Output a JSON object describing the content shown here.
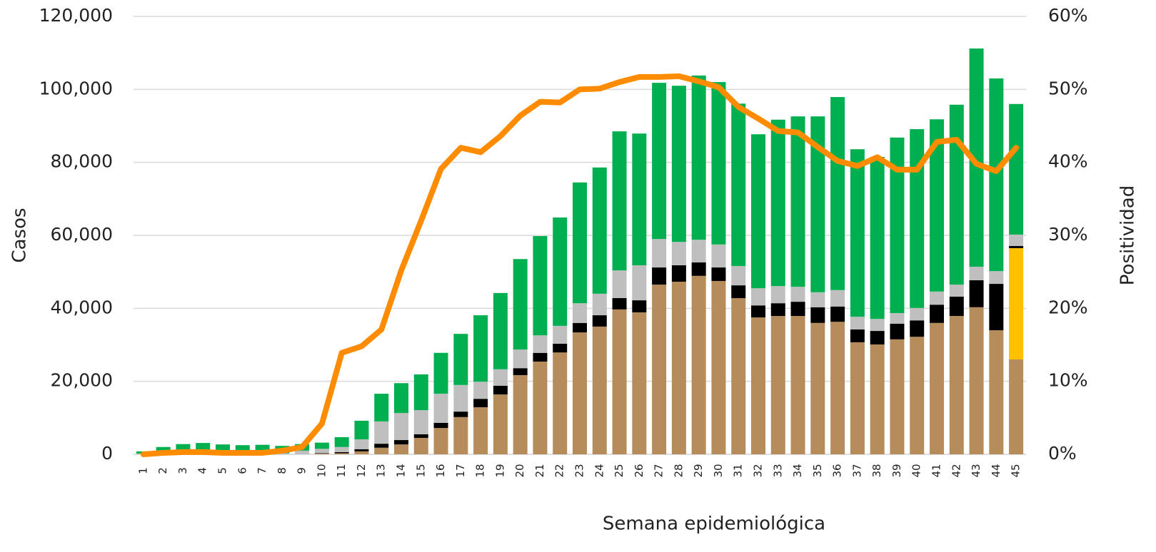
{
  "chart_data": {
    "type": "bar",
    "stacked": true,
    "grid": true,
    "xlabel": "Semana epidemiológica",
    "ylabel": "Casos",
    "y2label": "Positividad",
    "categories": [
      "1",
      "2",
      "3",
      "4",
      "5",
      "6",
      "7",
      "8",
      "9",
      "10",
      "11",
      "12",
      "13",
      "14",
      "15",
      "16",
      "17",
      "18",
      "19",
      "20",
      "21",
      "22",
      "23",
      "24",
      "25",
      "26",
      "27",
      "28",
      "29",
      "30",
      "31",
      "32",
      "33",
      "34",
      "35",
      "36",
      "37",
      "38",
      "39",
      "40",
      "41",
      "42",
      "43",
      "44",
      "45"
    ],
    "ylim": [
      0,
      120000
    ],
    "yticks": [
      0,
      {
        "value": 20000,
        "label": "20,000"
      },
      {
        "value": 40000,
        "label": "40,000"
      },
      {
        "value": 60000,
        "label": "60,000"
      },
      {
        "value": 80000,
        "label": "80,000"
      },
      {
        "value": 100000,
        "label": "100,000"
      },
      {
        "value": 120000,
        "label": "120,000"
      }
    ],
    "y2lim": [
      0,
      60
    ],
    "y2ticks": [
      {
        "value": 0,
        "label": "0%"
      },
      {
        "value": 10,
        "label": "10%"
      },
      {
        "value": 20,
        "label": "20%"
      },
      {
        "value": 30,
        "label": "30%"
      },
      {
        "value": 40,
        "label": "40%"
      },
      {
        "value": 50,
        "label": "50%"
      },
      {
        "value": 60,
        "label": "60%"
      }
    ],
    "series": [
      {
        "color": "#b58c5a",
        "values": [
          0,
          0,
          0,
          0,
          0,
          0,
          0,
          0,
          0,
          200,
          300,
          800,
          1800,
          2700,
          4500,
          7200,
          10200,
          12900,
          16400,
          21700,
          25400,
          27900,
          33400,
          35000,
          39700,
          38900,
          46500,
          47300,
          48900,
          47500,
          42800,
          37500,
          37900,
          37900,
          36000,
          36300,
          30700,
          30100,
          31500,
          32200,
          36000,
          37900,
          40300,
          34000,
          26000
        ]
      },
      {
        "color": "#ffc000",
        "values": [
          0,
          0,
          0,
          0,
          0,
          0,
          0,
          0,
          0,
          0,
          0,
          0,
          0,
          0,
          0,
          0,
          0,
          0,
          0,
          0,
          0,
          0,
          0,
          0,
          0,
          0,
          0,
          0,
          0,
          0,
          0,
          0,
          0,
          0,
          0,
          0,
          0,
          0,
          0,
          0,
          0,
          0,
          0,
          0,
          30500
        ]
      },
      {
        "color": "#000000",
        "values": [
          0,
          0,
          0,
          0,
          0,
          0,
          0,
          0,
          0,
          100,
          300,
          600,
          1100,
          1200,
          1000,
          1400,
          1500,
          2300,
          2400,
          1900,
          2400,
          2400,
          2600,
          3100,
          3100,
          3300,
          4700,
          4500,
          3700,
          3700,
          3500,
          3300,
          3500,
          3900,
          4300,
          4200,
          3500,
          3700,
          4300,
          4500,
          5000,
          5300,
          7400,
          12700,
          600
        ]
      },
      {
        "color": "#bfbfbf",
        "values": [
          200,
          300,
          300,
          300,
          300,
          300,
          300,
          300,
          1000,
          1200,
          1400,
          2700,
          6100,
          7400,
          6600,
          8000,
          7300,
          4700,
          4500,
          5100,
          4800,
          4900,
          5400,
          5900,
          7600,
          9600,
          7800,
          6400,
          6200,
          6300,
          5300,
          4700,
          4700,
          4100,
          4100,
          4500,
          3500,
          3300,
          2900,
          3400,
          3600,
          3300,
          3700,
          3500,
          3100
        ]
      },
      {
        "color": "#00b050",
        "values": [
          600,
          1700,
          2500,
          2800,
          2400,
          2200,
          2300,
          2000,
          1800,
          1700,
          2700,
          5100,
          7600,
          8200,
          9800,
          11200,
          14000,
          18200,
          20900,
          24800,
          27200,
          29700,
          33100,
          34600,
          38100,
          36100,
          42800,
          42800,
          45000,
          44500,
          44500,
          42200,
          45600,
          46700,
          48200,
          52900,
          45900,
          44400,
          48100,
          49000,
          47200,
          49300,
          59800,
          52800,
          35800
        ]
      },
      {
        "color": "#ff8c00",
        "axis": "y2",
        "type": "line",
        "values": [
          0,
          0.2,
          0.3,
          0.3,
          0.2,
          0.2,
          0.2,
          0.5,
          1.0,
          4.2,
          13.9,
          14.8,
          17.1,
          25.2,
          32,
          39.1,
          42,
          41.4,
          43.6,
          46.4,
          48.3,
          48.2,
          50,
          50.1,
          51,
          51.7,
          51.7,
          51.8,
          51.1,
          50.3,
          47.6,
          46,
          44.3,
          44.1,
          42.1,
          40.2,
          39.5,
          40.7,
          39,
          39,
          42.8,
          43.1,
          39.8,
          38.8,
          42
        ]
      }
    ]
  }
}
